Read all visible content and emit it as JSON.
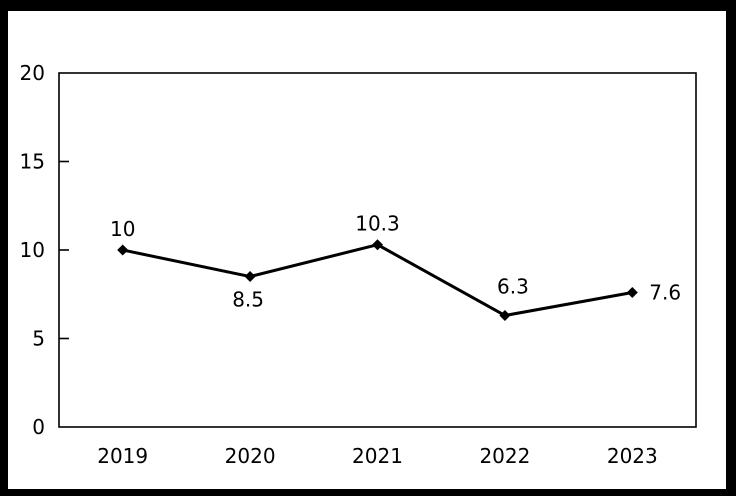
{
  "chart_data": {
    "type": "line",
    "title": "",
    "xlabel": "",
    "ylabel": "",
    "categories": [
      "2019",
      "2020",
      "2021",
      "2022",
      "2023"
    ],
    "series": [
      {
        "name": "series-1",
        "values": [
          10,
          8.5,
          10.3,
          6.3,
          7.6
        ],
        "data_labels": [
          "10",
          "8.5",
          "10.3",
          "6.3",
          "7.6"
        ],
        "label_placement": [
          "above",
          "below",
          "above",
          "above",
          "right"
        ],
        "label_offsets": [
          [
            0,
            -21
          ],
          [
            -2,
            23
          ],
          [
            0,
            -21
          ],
          [
            8,
            -29
          ],
          [
            33,
            0
          ]
        ],
        "line_color": "#000000",
        "marker": "diamond",
        "marker_color": "#000000"
      }
    ],
    "ylim": [
      0,
      20
    ],
    "yticks": [
      0,
      5,
      10,
      15,
      20
    ],
    "ytick_labels": [
      "0",
      "5",
      "10",
      "15",
      "20"
    ],
    "grid": false,
    "legend": "none",
    "plot_border_color": "#000000",
    "background_color": "#ffffff",
    "frame_color": "#000000"
  }
}
